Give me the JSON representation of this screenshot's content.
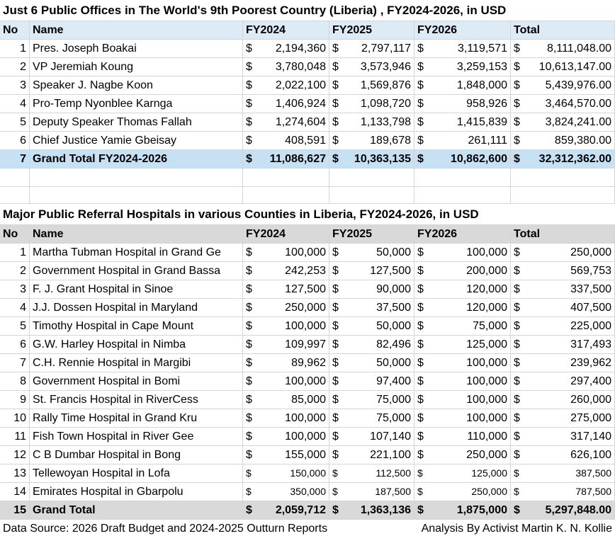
{
  "currency": "$",
  "table1": {
    "title": "Just 6 Public Offices in The World's 9th Poorest Country (Liberia) , FY2024-2026, in USD",
    "header": [
      "No",
      "Name",
      "FY2024",
      "FY2025",
      "FY2026",
      "Total"
    ],
    "rows": [
      [
        1,
        "Pres. Joseph Boakai",
        "2,194,360",
        "2,797,117",
        "3,119,571",
        "8,111,048.00"
      ],
      [
        2,
        "VP Jeremiah Koung",
        "3,780,048",
        "3,573,946",
        "3,259,153",
        "10,613,147.00"
      ],
      [
        3,
        "Speaker J. Nagbe Koon",
        "2,022,100",
        "1,569,876",
        "1,848,000",
        "5,439,976.00"
      ],
      [
        4,
        "Pro-Temp Nyonblee Karnga",
        "1,406,924",
        "1,098,720",
        "958,926",
        "3,464,570.00"
      ],
      [
        5,
        "Deputy Speaker Thomas Fallah",
        "1,274,604",
        "1,133,798",
        "1,415,839",
        "3,824,241.00"
      ],
      [
        6,
        "Chief Justice Yamie  Gbeisay",
        "408,591",
        "189,678",
        "261,111",
        "859,380.00"
      ]
    ],
    "total": [
      7,
      "Grand Total FY2024-2026",
      "11,086,627",
      "10,363,135",
      "10,862,600",
      "32,312,362.00"
    ]
  },
  "table2": {
    "title": "Major Public Referral Hospitals in various Counties in Liberia, FY2024-2026, in USD",
    "header": [
      "No",
      "Name",
      "FY2024",
      "FY2025",
      "FY2026",
      "Total"
    ],
    "rows": [
      [
        1,
        "Martha Tubman Hospital in Grand Ge",
        "100,000",
        "50,000",
        "100,000",
        "250,000"
      ],
      [
        2,
        "Government Hospital in Grand Bassa",
        "242,253",
        "127,500",
        "200,000",
        "569,753"
      ],
      [
        3,
        "F. J. Grant Hospital in Sinoe",
        "127,500",
        "90,000",
        "120,000",
        "337,500"
      ],
      [
        4,
        "J.J. Dossen Hospital in Maryland",
        "250,000",
        "37,500",
        "120,000",
        "407,500"
      ],
      [
        5,
        "Timothy Hospital in Cape Mount",
        "100,000",
        "50,000",
        "75,000",
        "225,000"
      ],
      [
        6,
        "G.W. Harley Hospital in Nimba",
        "109,997",
        "82,496",
        "125,000",
        "317,493"
      ],
      [
        7,
        "C.H. Rennie Hospital in Margibi",
        "89,962",
        "50,000",
        "100,000",
        "239,962"
      ],
      [
        8,
        "Government Hospital in Bomi",
        "100,000",
        "97,400",
        "100,000",
        "297,400"
      ],
      [
        9,
        "St. Francis Hospital in RiverCess",
        "85,000",
        "75,000",
        "100,000",
        "260,000"
      ],
      [
        10,
        "Rally Time Hospital in Grand Kru",
        "100,000",
        "75,000",
        "100,000",
        "275,000"
      ],
      [
        11,
        "Fish Town Hospital in River Gee",
        "100,000",
        "107,140",
        "110,000",
        "317,140"
      ],
      [
        12,
        "C B Dumbar Hospital in Bong",
        "155,000",
        "221,100",
        "250,000",
        "626,100"
      ],
      [
        13,
        "Tellewoyan Hospital in Lofa",
        "150,000",
        "112,500",
        "125,000",
        "387,500"
      ],
      [
        14,
        "Emirates Hospital in Gbarpolu",
        "350,000",
        "187,500",
        "250,000",
        "787,500"
      ]
    ],
    "total": [
      15,
      "Grand Total",
      "2,059,712",
      "1,363,136",
      "1,875,000",
      "5,297,848.00"
    ]
  },
  "footer": {
    "source": "Data Source: 2026 Draft Budget and 2024-2025 Outturn Reports",
    "analysis": "Analysis By Activist Martin K. N. Kollie"
  }
}
